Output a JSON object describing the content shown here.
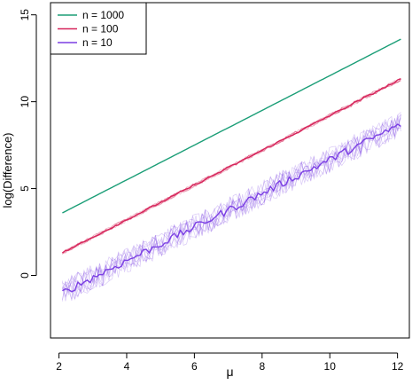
{
  "chart_data": {
    "type": "line",
    "title": "",
    "xlabel": "μ",
    "ylabel": "log(Difference)",
    "xlim": [
      1.75,
      12.35
    ],
    "ylim": [
      -3.6,
      15.7
    ],
    "x_ticks": [
      2,
      4,
      6,
      8,
      10,
      12
    ],
    "y_ticks": [
      0,
      5,
      10,
      15
    ],
    "grid": false,
    "legend_position": "top-left",
    "x": [
      2.1,
      12.1
    ],
    "series": [
      {
        "name": "n = 1000",
        "color": "#1b9e77",
        "y": [
          3.6,
          13.6
        ]
      },
      {
        "name": "n = 100",
        "color": "#d6245a",
        "y": [
          1.3,
          11.3
        ]
      },
      {
        "name": "n = 10",
        "color": "#7b3fe4",
        "y": [
          -1.0,
          8.7
        ]
      }
    ]
  }
}
